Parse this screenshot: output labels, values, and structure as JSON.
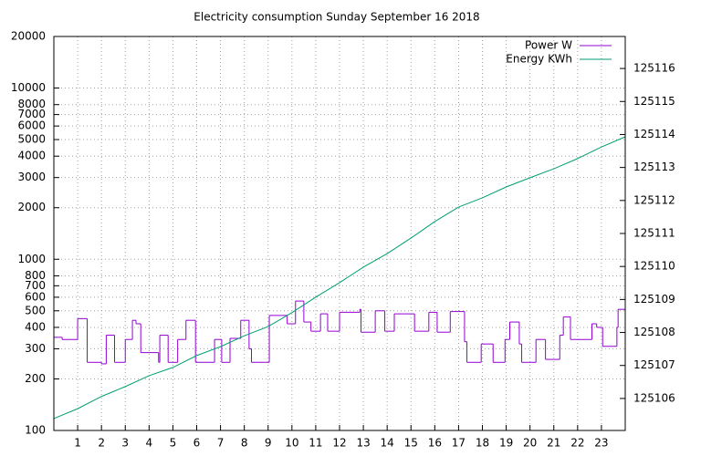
{
  "chart_data": {
    "type": "line",
    "title": "Electricity consumption Sunday September 16 2018",
    "xlim": [
      0,
      24
    ],
    "xticks": [
      1,
      2,
      3,
      4,
      5,
      6,
      7,
      8,
      9,
      10,
      11,
      12,
      13,
      14,
      15,
      16,
      17,
      18,
      19,
      20,
      21,
      22,
      23
    ],
    "ylim": [
      100,
      20000
    ],
    "log_y": true,
    "yticks": [
      100,
      200,
      300,
      400,
      500,
      600,
      700,
      800,
      1000,
      2000,
      3000,
      4000,
      5000,
      6000,
      7000,
      8000,
      10000,
      20000
    ],
    "y2lim": [
      125105.03,
      125116.97
    ],
    "y2ticks": [
      125106,
      125107,
      125108,
      125109,
      125110,
      125111,
      125112,
      125113,
      125114,
      125115,
      125116
    ],
    "grid": true,
    "legend": "top-right",
    "series": [
      {
        "name": "Power W",
        "color": "#9400d3",
        "step": "post",
        "x": [
          0,
          0.35,
          1.0,
          1.4,
          2.0,
          2.2,
          2.55,
          3.0,
          3.3,
          3.45,
          3.65,
          4.4,
          4.45,
          4.8,
          5.2,
          5.55,
          5.95,
          6.75,
          7.05,
          7.4,
          7.85,
          8.2,
          8.3,
          9.05,
          9.8,
          10.15,
          10.5,
          10.8,
          11.2,
          11.5,
          12.0,
          12.85,
          12.9,
          13.5,
          13.9,
          14.3,
          15.15,
          15.75,
          16.1,
          16.65,
          17.25,
          17.35,
          17.95,
          18.45,
          18.95,
          19.15,
          19.55,
          19.65,
          20.25,
          20.65,
          21.25,
          21.4,
          21.7,
          22.6,
          22.8,
          23.05,
          23.65,
          23.7,
          24
        ],
        "values": [
          350,
          340,
          450,
          250,
          245,
          360,
          250,
          340,
          440,
          420,
          285,
          250,
          360,
          250,
          340,
          440,
          250,
          340,
          250,
          345,
          440,
          300,
          250,
          470,
          420,
          570,
          430,
          380,
          480,
          380,
          490,
          510,
          375,
          500,
          380,
          480,
          380,
          490,
          375,
          495,
          330,
          250,
          320,
          250,
          340,
          430,
          320,
          250,
          340,
          260,
          360,
          460,
          340,
          420,
          400,
          310,
          400,
          510,
          510
        ]
      },
      {
        "name": "Energy KWh",
        "color": "#009e73",
        "axis": "y2",
        "x": [
          0,
          1,
          2,
          3,
          4,
          5,
          6,
          7,
          8,
          9,
          10,
          11,
          12,
          13,
          14,
          15,
          16,
          17,
          18,
          19,
          20,
          21,
          22,
          23,
          24
        ],
        "values": [
          125105.39,
          125105.69,
          125106.06,
          125106.36,
          125106.69,
          125106.94,
          125107.3,
          125107.57,
          125107.9,
          125108.18,
          125108.6,
          125109.07,
          125109.51,
          125109.98,
          125110.39,
          125110.86,
          125111.36,
          125111.8,
          125112.08,
          125112.41,
          125112.69,
          125112.96,
          125113.27,
          125113.62,
          125113.93
        ]
      }
    ]
  }
}
